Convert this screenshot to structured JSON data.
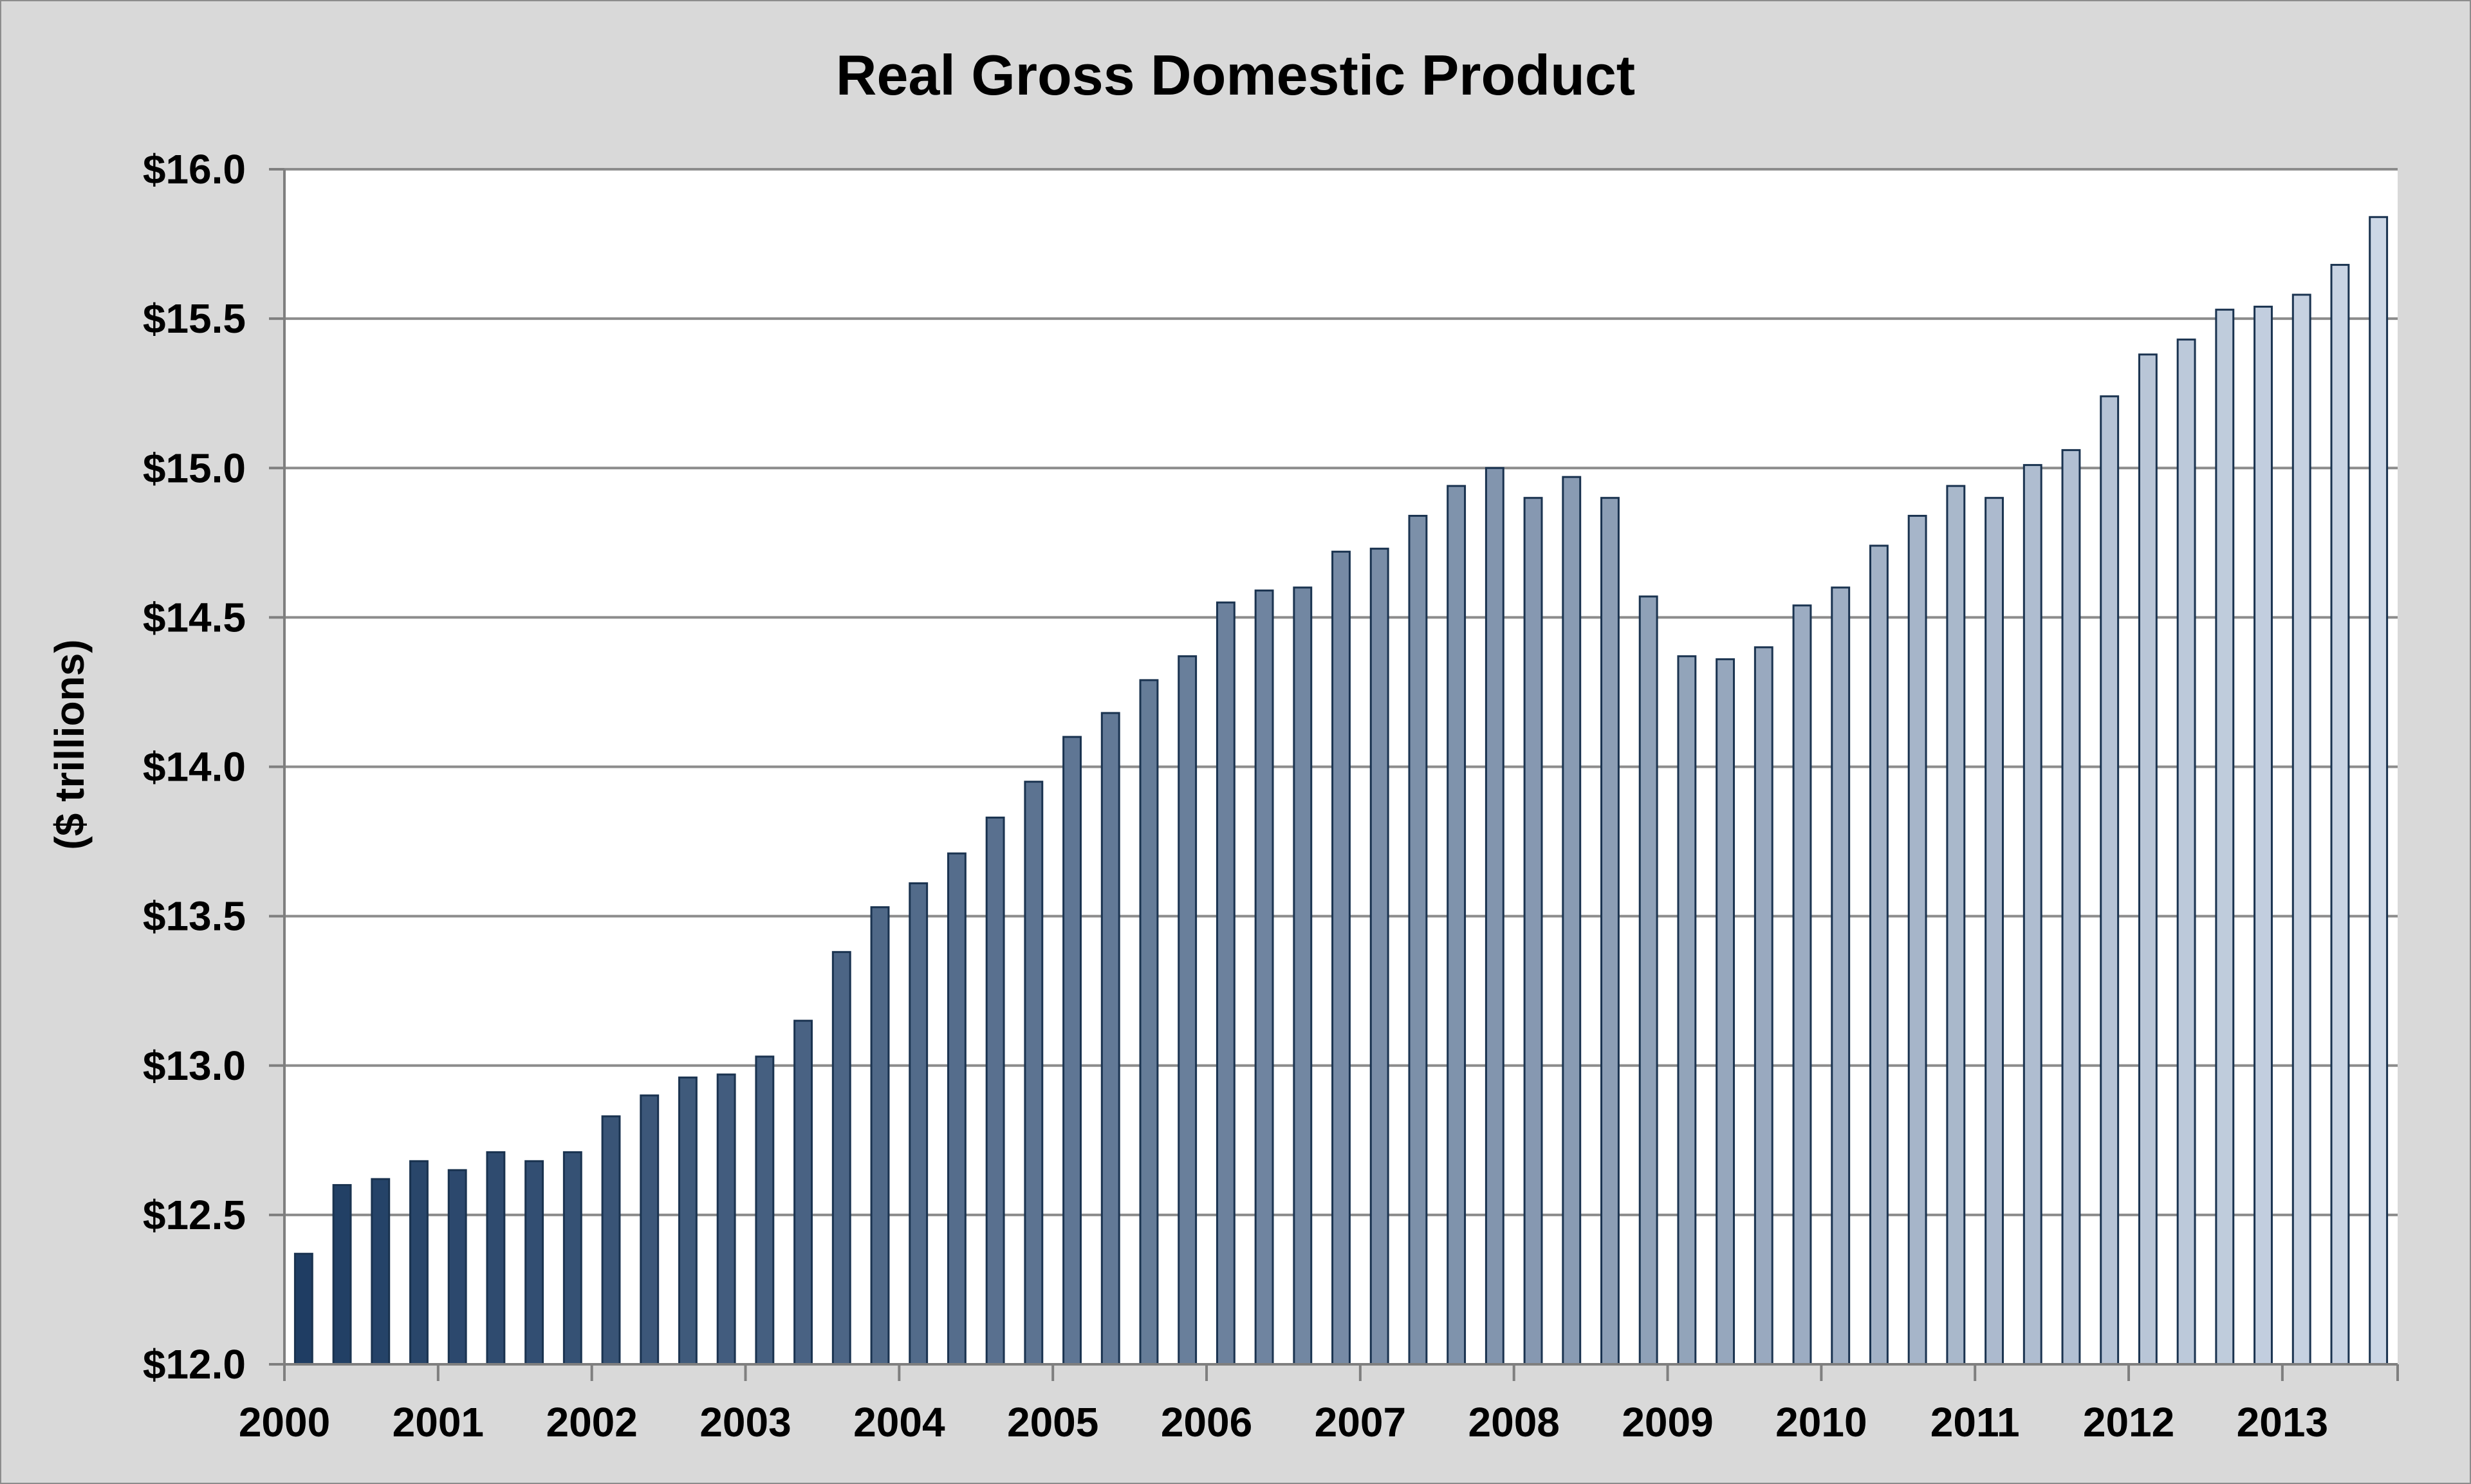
{
  "chart_data": {
    "type": "bar",
    "title": "Real Gross Domestic Product",
    "xlabel": "",
    "ylabel": "($ trillions)",
    "ylim": [
      12.0,
      16.0
    ],
    "y_ticks": [
      "$12.0",
      "$12.5",
      "$13.0",
      "$13.5",
      "$14.0",
      "$14.5",
      "$15.0",
      "$15.5",
      "$16.0"
    ],
    "x_tick_labels": [
      "2000",
      "2001",
      "2002",
      "2003",
      "2004",
      "2005",
      "2006",
      "2007",
      "2008",
      "2009",
      "2010",
      "2011",
      "2012",
      "2013"
    ],
    "quarters_per_year": 4,
    "grid": true,
    "legend": "none",
    "colors": {
      "bar_dark": "#1f3d63",
      "bar_light": "#ccd7e6",
      "bar_outline": "#1a3350",
      "gridline": "#8c8c8c",
      "plot_background": "#ffffff",
      "chart_background": "#d9d9d9"
    },
    "values": [
      12.37,
      12.6,
      12.62,
      12.68,
      12.65,
      12.71,
      12.68,
      12.71,
      12.83,
      12.9,
      12.96,
      12.97,
      13.03,
      13.15,
      13.38,
      13.53,
      13.61,
      13.71,
      13.83,
      13.95,
      14.1,
      14.18,
      14.29,
      14.37,
      14.55,
      14.59,
      14.6,
      14.72,
      14.73,
      14.84,
      14.94,
      15.0,
      14.9,
      14.97,
      14.9,
      14.57,
      14.37,
      14.36,
      14.4,
      14.54,
      14.6,
      14.74,
      14.84,
      14.94,
      14.9,
      15.01,
      15.06,
      15.24,
      15.38,
      15.43,
      15.53,
      15.54,
      15.58,
      15.68,
      15.84
    ]
  }
}
